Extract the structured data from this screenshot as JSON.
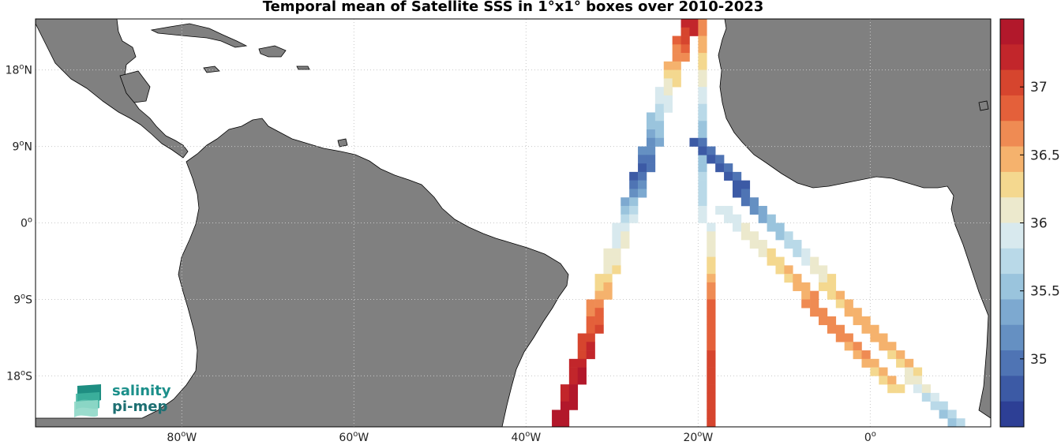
{
  "title": "Temporal mean of Satellite SSS in 1°x1° boxes over 2010-2023",
  "axes": {
    "lat_labels": [
      {
        "base": "18",
        "sup": "o",
        "hemi": "N",
        "lat": 18
      },
      {
        "base": "9",
        "sup": "o",
        "hemi": "N",
        "lat": 9
      },
      {
        "base": "0",
        "sup": "o",
        "hemi": "",
        "lat": 0
      },
      {
        "base": "9",
        "sup": "o",
        "hemi": "S",
        "lat": -9
      },
      {
        "base": "18",
        "sup": "o",
        "hemi": "S",
        "lat": -18
      }
    ],
    "lon_labels": [
      {
        "base": "80",
        "sup": "o",
        "hemi": "W",
        "lon": -80
      },
      {
        "base": "60",
        "sup": "o",
        "hemi": "W",
        "lon": -60
      },
      {
        "base": "40",
        "sup": "o",
        "hemi": "W",
        "lon": -40
      },
      {
        "base": "20",
        "sup": "o",
        "hemi": "W",
        "lon": -20
      },
      {
        "base": "0",
        "sup": "o",
        "hemi": "",
        "lon": 0
      }
    ]
  },
  "colorbar": {
    "ticks": [
      "37",
      "36.5",
      "36",
      "35.5",
      "35"
    ],
    "tick_values": [
      37,
      36.5,
      36,
      35.5,
      35
    ],
    "range": [
      34.5,
      37.5
    ],
    "colors": [
      "#b2182b",
      "#c2262b",
      "#d6452e",
      "#e4603a",
      "#ef8b53",
      "#f5b26d",
      "#f4d88f",
      "#ece9cd",
      "#d8e9ee",
      "#b9d9e8",
      "#9ac4dd",
      "#7da9d0",
      "#6590c2",
      "#4f74b4",
      "#3c5aa5",
      "#2d3f95"
    ]
  },
  "colors": {
    "land": "#808080",
    "ocean": "#ffffff",
    "grid": "#c8c8c8"
  },
  "logo": {
    "line1": "salinity",
    "line2": "pi-mep"
  },
  "chart_data": {
    "type": "heatmap",
    "title": "Temporal mean of Satellite SSS in 1°x1° boxes over 2010-2023",
    "xlabel": "",
    "ylabel": "",
    "x_range_deg": [
      -97,
      14
    ],
    "y_range_deg": [
      -24,
      24
    ],
    "grid": true,
    "colorbar_range": [
      34.5,
      37.5
    ],
    "tracks": [
      {
        "start_lon": -21.5,
        "start_lat": 23.5,
        "end_lon": -36.5,
        "end_lat": -23.5,
        "sss_profile": [
          {
            "lat": 23,
            "v": 37.2
          },
          {
            "lat": 17,
            "v": 36.2
          },
          {
            "lat": 12,
            "v": 35.6
          },
          {
            "lat": 6,
            "v": 34.8
          },
          {
            "lat": 0,
            "v": 35.9
          },
          {
            "lat": -6,
            "v": 36.2
          },
          {
            "lat": -12,
            "v": 36.9
          },
          {
            "lat": -18,
            "v": 37.3
          },
          {
            "lat": -23,
            "v": 37.4
          }
        ]
      },
      {
        "start_lon": -19.5,
        "start_lat": 23.5,
        "end_lon": -18.5,
        "end_lat": -23.5,
        "sss_profile": [
          {
            "lat": 23,
            "v": 36.7
          },
          {
            "lat": 16,
            "v": 36.0
          },
          {
            "lat": 10,
            "v": 35.5
          },
          {
            "lat": 3,
            "v": 35.8
          },
          {
            "lat": -4,
            "v": 36.2
          },
          {
            "lat": -10,
            "v": 36.9
          },
          {
            "lat": -23,
            "v": 37.1
          }
        ]
      },
      {
        "start_lon": -20.5,
        "start_lat": 9.5,
        "end_lon": 9.5,
        "end_lat": -23.5,
        "sss_profile": [
          {
            "lat": 9,
            "v": 34.9
          },
          {
            "lat": 4,
            "v": 34.8
          },
          {
            "lat": 0,
            "v": 35.5
          },
          {
            "lat": -4,
            "v": 35.9
          },
          {
            "lat": -8,
            "v": 36.3
          },
          {
            "lat": -12,
            "v": 36.5
          },
          {
            "lat": -16,
            "v": 36.4
          },
          {
            "lat": -19,
            "v": 36.0
          },
          {
            "lat": -23,
            "v": 35.6
          }
        ]
      },
      {
        "start_lon": -17.5,
        "start_lat": 1.5,
        "end_lon": 2.5,
        "end_lat": -19.5,
        "sss_profile": [
          {
            "lat": 1,
            "v": 35.9
          },
          {
            "lat": -4,
            "v": 36.2
          },
          {
            "lat": -9,
            "v": 36.6
          },
          {
            "lat": -13,
            "v": 36.7
          },
          {
            "lat": -19,
            "v": 36.3
          }
        ]
      }
    ]
  }
}
